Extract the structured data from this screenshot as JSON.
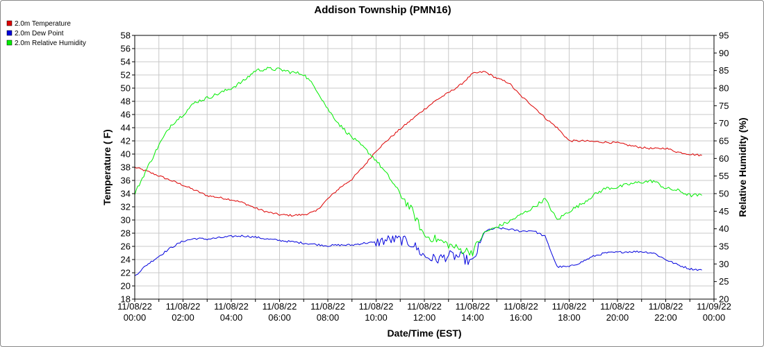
{
  "chart_data": {
    "type": "line",
    "title": "Addison Township (PMN16)",
    "xlabel": "Date/Time (EST)",
    "ylabel_left": "Temperature ( F)",
    "ylabel_right": "Relative Humidity (%)",
    "xlim_hours": [
      0,
      24
    ],
    "x_ticks": [
      {
        "date": "11/08/22",
        "time": "00:00"
      },
      {
        "date": "11/08/22",
        "time": "02:00"
      },
      {
        "date": "11/08/22",
        "time": "04:00"
      },
      {
        "date": "11/08/22",
        "time": "06:00"
      },
      {
        "date": "11/08/22",
        "time": "08:00"
      },
      {
        "date": "11/08/22",
        "time": "10:00"
      },
      {
        "date": "11/08/22",
        "time": "12:00"
      },
      {
        "date": "11/08/22",
        "time": "14:00"
      },
      {
        "date": "11/08/22",
        "time": "16:00"
      },
      {
        "date": "11/08/22",
        "time": "18:00"
      },
      {
        "date": "11/08/22",
        "time": "20:00"
      },
      {
        "date": "11/08/22",
        "time": "22:00"
      },
      {
        "date": "11/09/22",
        "time": "00:00"
      }
    ],
    "ylim_left": [
      18,
      58
    ],
    "yticks_left": [
      "18",
      "20",
      "22",
      "24",
      "26",
      "28",
      "30",
      "32",
      "34",
      "36",
      "38",
      "40",
      "42",
      "44",
      "46",
      "48",
      "50",
      "52",
      "54",
      "56",
      "58"
    ],
    "ylim_right": [
      20,
      95
    ],
    "yticks_right": [
      "20",
      "25",
      "30",
      "35",
      "40",
      "45",
      "50",
      "55",
      "60",
      "65",
      "70",
      "75",
      "80",
      "85",
      "90",
      "95"
    ],
    "grid": true,
    "legend_position": "top-left",
    "series": [
      {
        "name": "2.0m Temperature",
        "axis": "left",
        "color": "#dd0000",
        "x": [
          0,
          0.5,
          1,
          1.5,
          2,
          2.5,
          3,
          3.5,
          4,
          4.5,
          5,
          5.5,
          6,
          6.5,
          7,
          7.5,
          8,
          8.5,
          9,
          9.5,
          10,
          10.5,
          11,
          11.5,
          12,
          12.5,
          13,
          13.5,
          14,
          14.5,
          15,
          15.5,
          16,
          16.5,
          17,
          17.5,
          18,
          18.5,
          19,
          19.5,
          20,
          20.5,
          21,
          21.5,
          22,
          22.5,
          23,
          23.5
        ],
        "values": [
          38,
          37.4,
          36.7,
          36,
          35.3,
          34.5,
          33.7,
          33.4,
          33.1,
          32.6,
          31.8,
          31.2,
          30.8,
          30.7,
          30.8,
          31.3,
          33.2,
          34.9,
          36.2,
          38.2,
          40.5,
          42.2,
          43.8,
          45.3,
          46.8,
          48.2,
          49.3,
          50.5,
          52.2,
          52.5,
          51.5,
          50.8,
          48.8,
          47.3,
          45.5,
          44,
          42,
          42,
          41.9,
          41.8,
          41.7,
          41.3,
          41,
          40.8,
          40.9,
          40.3,
          40,
          39.8
        ]
      },
      {
        "name": "2.0m Dew Point",
        "axis": "left",
        "color": "#0000dd",
        "x": [
          0,
          0.5,
          1,
          1.5,
          2,
          2.5,
          3,
          3.5,
          4,
          4.5,
          5,
          5.5,
          6,
          6.5,
          7,
          7.5,
          8,
          8.5,
          9,
          9.5,
          10,
          10.5,
          11,
          11.5,
          12,
          12.5,
          13,
          13.5,
          14,
          14.5,
          15,
          15.5,
          16,
          16.5,
          17,
          17.5,
          18,
          18.5,
          19,
          19.5,
          20,
          20.5,
          21,
          21.5,
          22,
          22.5,
          23,
          23.5
        ],
        "values": [
          21.5,
          23.2,
          24.5,
          25.8,
          26.8,
          27.2,
          27.1,
          27.3,
          27.5,
          27.6,
          27.4,
          27.1,
          26.9,
          26.7,
          26.5,
          26.3,
          26.1,
          26.2,
          26.2,
          26.5,
          26.6,
          27,
          27,
          26.4,
          24.5,
          24,
          24.6,
          24.4,
          23.5,
          28.3,
          28.8,
          28.6,
          28.3,
          28.4,
          27.5,
          22.9,
          22.9,
          23.6,
          24.5,
          25,
          25.1,
          25.2,
          25.2,
          25,
          24,
          23.2,
          22.6,
          22.4
        ]
      },
      {
        "name": "2.0m Relative Humidity",
        "axis": "right",
        "color": "#00ee00",
        "x": [
          0,
          0.5,
          1,
          1.5,
          2,
          2.5,
          3,
          3.5,
          4,
          4.5,
          5,
          5.5,
          6,
          6.5,
          7,
          7.5,
          8,
          8.5,
          9,
          9.5,
          10,
          10.5,
          11,
          11.5,
          12,
          12.5,
          13,
          13.5,
          14,
          14.5,
          15,
          15.5,
          16,
          16.5,
          17,
          17.5,
          18,
          18.5,
          19,
          19.5,
          20,
          20.5,
          21,
          21.5,
          22,
          22.5,
          23,
          23.5
        ],
        "values": [
          50,
          57,
          63.8,
          69.5,
          72.5,
          76,
          77.2,
          78.5,
          80,
          82,
          85,
          85.5,
          85.3,
          84.5,
          84,
          80,
          74,
          69.5,
          66,
          63,
          59.5,
          55,
          50,
          45,
          38,
          37,
          35.5,
          34,
          33.5,
          39,
          40.5,
          42,
          44,
          46,
          48.5,
          42.5,
          45,
          47,
          49.5,
          51.5,
          51.8,
          52.7,
          53.3,
          53.6,
          51.5,
          50.9,
          49.5,
          49.5
        ]
      }
    ]
  }
}
